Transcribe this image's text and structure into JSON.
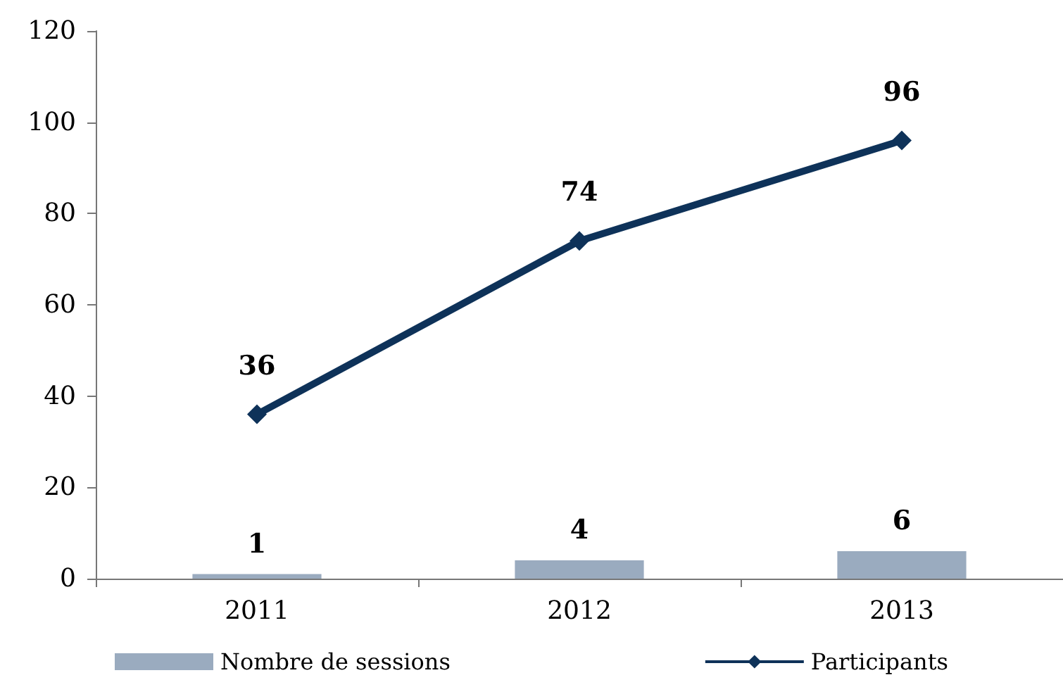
{
  "chart_data": {
    "type": "bar",
    "categories": [
      "2011",
      "2012",
      "2013"
    ],
    "series": [
      {
        "name": "Nombre de sessions",
        "color": "#9aabbf",
        "values": [
          1,
          4,
          6
        ]
      },
      {
        "name": "Participants",
        "type": "line",
        "color": "#0e3259",
        "values": [
          36,
          74,
          96
        ]
      }
    ],
    "ylim": [
      0,
      120
    ],
    "yticks": [
      0,
      20,
      40,
      60,
      80,
      100,
      120
    ],
    "grid": false,
    "legend": "bottom",
    "marker": "diamond",
    "line_style": "solid",
    "data_labels": true
  }
}
